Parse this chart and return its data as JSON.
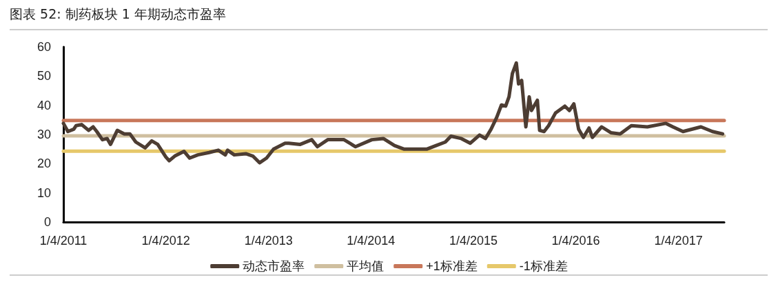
{
  "chart_data": {
    "type": "line",
    "title": "图表 52: 制药板块 1 年期动态市盈率",
    "xlim": [
      "2011-01-04",
      "2017-06-16"
    ],
    "xticks": [
      {
        "value": "2011-01-04",
        "label": "1/4/2011"
      },
      {
        "value": "2012-01-04",
        "label": "1/4/2012"
      },
      {
        "value": "2013-01-04",
        "label": "1/4/2013"
      },
      {
        "value": "2014-01-04",
        "label": "1/4/2014"
      },
      {
        "value": "2015-01-04",
        "label": "1/4/2015"
      },
      {
        "value": "2016-01-04",
        "label": "1/4/2016"
      },
      {
        "value": "2017-01-04",
        "label": "1/4/2017"
      }
    ],
    "ylim": [
      0,
      60
    ],
    "yticks": [
      0,
      10,
      20,
      30,
      40,
      50,
      60
    ],
    "grid": false,
    "legend": "bottom",
    "series": [
      {
        "name": "动态市盈率",
        "color": "#4d3d33",
        "x": [
          "2011-01-04",
          "2011-01-20",
          "2011-02-10",
          "2011-02-18",
          "2011-03-10",
          "2011-04-04",
          "2011-04-20",
          "2011-05-03",
          "2011-05-23",
          "2011-06-09",
          "2011-06-21",
          "2011-07-15",
          "2011-08-09",
          "2011-08-29",
          "2011-09-19",
          "2011-10-22",
          "2011-11-15",
          "2011-12-06",
          "2012-01-04",
          "2012-01-16",
          "2012-02-05",
          "2012-03-09",
          "2012-03-29",
          "2012-04-27",
          "2012-06-06",
          "2012-07-09",
          "2012-08-03",
          "2012-08-11",
          "2012-09-04",
          "2012-10-15",
          "2012-11-09",
          "2012-12-03",
          "2012-12-28",
          "2013-01-22",
          "2013-03-04",
          "2013-03-17",
          "2013-04-27",
          "2013-06-07",
          "2013-06-27",
          "2013-08-03",
          "2013-09-30",
          "2013-11-10",
          "2014-01-07",
          "2014-02-17",
          "2014-03-29",
          "2014-05-01",
          "2014-07-23",
          "2014-08-24",
          "2014-09-26",
          "2014-10-16",
          "2014-11-22",
          "2014-12-24",
          "2015-01-26",
          "2015-02-16",
          "2015-03-08",
          "2015-03-28",
          "2015-04-14",
          "2015-04-29",
          "2015-05-11",
          "2015-05-23",
          "2015-06-06",
          "2015-06-14",
          "2015-06-25",
          "2015-07-10",
          "2015-07-22",
          "2015-07-30",
          "2015-08-20",
          "2015-08-28",
          "2015-09-13",
          "2015-09-29",
          "2015-10-24",
          "2015-11-26",
          "2015-12-12",
          "2015-12-28",
          "2016-01-14",
          "2016-01-31",
          "2016-02-20",
          "2016-03-03",
          "2016-04-05",
          "2016-05-08",
          "2016-06-10",
          "2016-07-20",
          "2016-09-15",
          "2016-11-20",
          "2016-12-15",
          "2017-01-20",
          "2017-03-25",
          "2017-05-05",
          "2017-06-10"
        ],
        "values": [
          33.8,
          31,
          31.8,
          33,
          33.4,
          31.4,
          32.6,
          31,
          28.2,
          28.6,
          26.6,
          31.4,
          30.2,
          30.2,
          27.4,
          25.4,
          27.8,
          26.6,
          22.3,
          21,
          22.6,
          24.2,
          21.9,
          23,
          23.8,
          24.6,
          23,
          24.6,
          23,
          23.4,
          22.6,
          20.3,
          21.9,
          25,
          27,
          27,
          26.6,
          28.2,
          25.8,
          28.2,
          28.2,
          25.8,
          28.2,
          28.6,
          26.2,
          25,
          25,
          26.2,
          27.4,
          29.4,
          28.6,
          27,
          29.8,
          28.6,
          31.8,
          35.8,
          40.1,
          39.7,
          42.9,
          50.9,
          54.5,
          47.3,
          48.5,
          32.6,
          42.9,
          38.2,
          41.7,
          31.4,
          31,
          33,
          37.4,
          39.7,
          38.2,
          40.5,
          31.8,
          29,
          32.2,
          29,
          32.6,
          30.6,
          30.2,
          33,
          32.6,
          33.8,
          32.6,
          31,
          32.6,
          31,
          30.2
        ]
      },
      {
        "name": "平均值",
        "color": "#cfbf9f",
        "x": [
          "2011-01-04",
          "2017-06-16"
        ],
        "values": [
          29.5,
          29.5
        ]
      },
      {
        "name": "+1标准差",
        "color": "#c8775a",
        "x": [
          "2011-01-04",
          "2017-06-16"
        ],
        "values": [
          34.8,
          34.8
        ]
      },
      {
        "name": "-1标准差",
        "color": "#e6c86a",
        "x": [
          "2011-01-04",
          "2017-06-16"
        ],
        "values": [
          24.3,
          24.3
        ]
      }
    ]
  }
}
